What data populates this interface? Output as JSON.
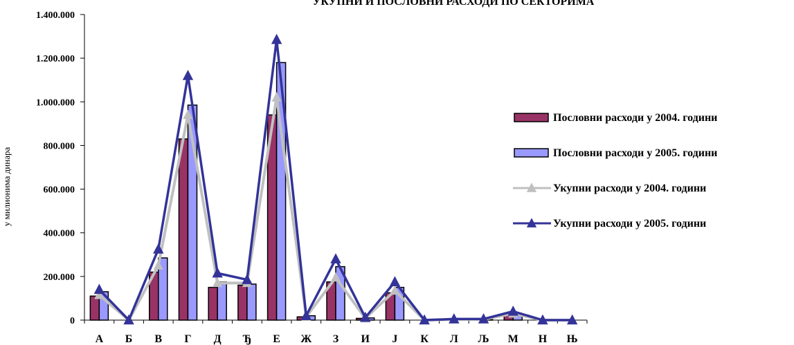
{
  "chart_data": {
    "type": "bar",
    "title": "УКУПНИ И ПОСЛОВНИ РАСХОДИ ПО СЕКТОРИМА",
    "ylabel": "у милионима динара",
    "xlabel": "",
    "ylim": [
      0,
      1400000
    ],
    "yticks": [
      0,
      200000,
      400000,
      600000,
      800000,
      1000000,
      1200000,
      1400000
    ],
    "ytick_labels": [
      "0",
      "200.000",
      "400.000",
      "600.000",
      "800.000",
      "1.000.000",
      "1.200.000",
      "1.400.000"
    ],
    "categories": [
      "А",
      "Б",
      "В",
      "Г",
      "Д",
      "Ђ",
      "Е",
      "Ж",
      "З",
      "И",
      "Ј",
      "К",
      "Л",
      "Љ",
      "М",
      "Н",
      "Њ"
    ],
    "legend_position": "right",
    "grid": false,
    "series": [
      {
        "name": "Пословни расходи у 2004. години",
        "kind": "bar",
        "color": "#993366",
        "values": [
          110000,
          0,
          220000,
          830000,
          150000,
          160000,
          940000,
          15000,
          175000,
          8000,
          125000,
          0,
          3000,
          3000,
          25000,
          0,
          0
        ]
      },
      {
        "name": "Пословни расходи у 2005. години",
        "kind": "bar",
        "color": "#9999ff",
        "values": [
          130000,
          0,
          285000,
          985000,
          175000,
          165000,
          1180000,
          20000,
          245000,
          10000,
          150000,
          0,
          4000,
          4000,
          30000,
          0,
          0
        ]
      },
      {
        "name": "Укупни расходи у 2004. години",
        "kind": "line",
        "color": "#c0c0c0",
        "values": [
          115000,
          0,
          250000,
          940000,
          170000,
          170000,
          1020000,
          15000,
          195000,
          8000,
          135000,
          0,
          3000,
          3000,
          30000,
          0,
          0
        ]
      },
      {
        "name": "Укупни расходи у 2005. години",
        "kind": "line",
        "color": "#333399",
        "values": [
          140000,
          0,
          325000,
          1120000,
          215000,
          185000,
          1285000,
          20000,
          280000,
          12000,
          175000,
          0,
          5000,
          5000,
          40000,
          0,
          0
        ]
      }
    ]
  }
}
